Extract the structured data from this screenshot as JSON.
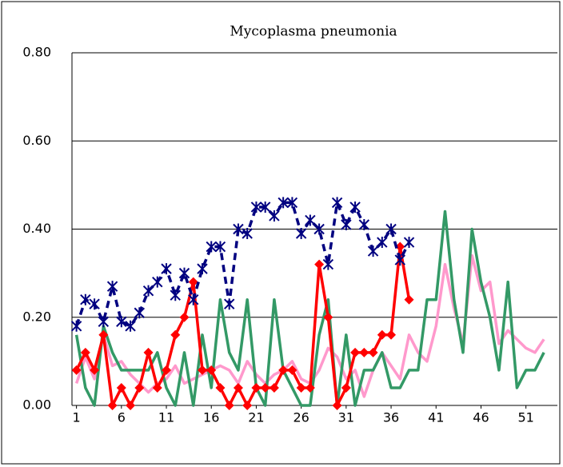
{
  "chart_data": {
    "type": "line",
    "title": "Mycoplasma pneumonia",
    "x": [
      1,
      2,
      3,
      4,
      5,
      6,
      7,
      8,
      9,
      10,
      11,
      12,
      13,
      14,
      15,
      16,
      17,
      18,
      19,
      20,
      21,
      22,
      23,
      24,
      25,
      26,
      27,
      28,
      29,
      30,
      31,
      32,
      33,
      34,
      35,
      36,
      37,
      38,
      39,
      40,
      41,
      42,
      43,
      44,
      45,
      46,
      47,
      48,
      49,
      50,
      51,
      52,
      53
    ],
    "xlim": [
      0.5,
      54.5
    ],
    "xticks": [
      1,
      6,
      11,
      16,
      21,
      26,
      31,
      36,
      41,
      46,
      51
    ],
    "ylim": [
      0,
      0.8
    ],
    "yticks": [
      {
        "value": 0,
        "label": "0.00"
      },
      {
        "value": 0.2,
        "label": "0.20"
      },
      {
        "value": 0.4,
        "label": "0.40"
      },
      {
        "value": 0.6,
        "label": "0.60"
      },
      {
        "value": 0.8,
        "label": "0.80"
      }
    ],
    "grid": true,
    "series": [
      {
        "color": "#ff99cc",
        "style": "solid",
        "marker": "none",
        "values": [
          0.05,
          0.11,
          0.06,
          0.16,
          0.09,
          0.1,
          0.07,
          0.05,
          0.03,
          0.05,
          0.06,
          0.09,
          0.05,
          0.06,
          0.07,
          0.08,
          0.09,
          0.08,
          0.05,
          0.1,
          0.07,
          0.05,
          0.07,
          0.08,
          0.1,
          0.06,
          0.05,
          0.08,
          0.13,
          0.11,
          0.06,
          0.08,
          0.02,
          0.08,
          0.12,
          0.09,
          0.06,
          0.16,
          0.12,
          0.1,
          0.18,
          0.32,
          0.22,
          0.14,
          0.34,
          0.26,
          0.28,
          0.14,
          0.17,
          0.15,
          0.13,
          0.12,
          0.15
        ]
      },
      {
        "color": "#339966",
        "style": "solid",
        "marker": "none",
        "values": [
          0.16,
          0.04,
          0.0,
          0.18,
          0.12,
          0.08,
          0.08,
          0.08,
          0.08,
          0.12,
          0.04,
          0.0,
          0.12,
          0.0,
          0.16,
          0.04,
          0.24,
          0.12,
          0.08,
          0.24,
          0.04,
          0.0,
          0.24,
          0.08,
          0.04,
          0.0,
          0.0,
          0.16,
          0.24,
          0.0,
          0.16,
          0.0,
          0.08,
          0.08,
          0.12,
          0.04,
          0.04,
          0.08,
          0.08,
          0.24,
          0.24,
          0.44,
          0.24,
          0.12,
          0.4,
          0.28,
          0.2,
          0.08,
          0.28,
          0.04,
          0.08,
          0.08,
          0.12
        ]
      },
      {
        "color": "#ff0000",
        "style": "solid",
        "marker": "diamond",
        "values": [
          0.08,
          0.12,
          0.08,
          0.16,
          0.0,
          0.04,
          0.0,
          0.04,
          0.12,
          0.04,
          0.08,
          0.16,
          0.2,
          0.28,
          0.08,
          0.08,
          0.04,
          0.0,
          0.04,
          0.0,
          0.04,
          0.04,
          0.04,
          0.08,
          0.08,
          0.04,
          0.04,
          0.32,
          0.2,
          0.0,
          0.04,
          0.12,
          0.12,
          0.12,
          0.16,
          0.16,
          0.36,
          0.24,
          null,
          null,
          null,
          null,
          null,
          null,
          null,
          null,
          null,
          null,
          null,
          null,
          null,
          null,
          null
        ]
      },
      {
        "color": "#000080",
        "style": "dashed",
        "marker": "asterisk",
        "values": [
          0.18,
          0.24,
          0.23,
          0.19,
          0.27,
          0.19,
          0.18,
          0.21,
          0.26,
          0.28,
          0.31,
          0.25,
          0.3,
          0.24,
          0.31,
          0.36,
          0.36,
          0.23,
          0.4,
          0.39,
          0.45,
          0.45,
          0.43,
          0.46,
          0.46,
          0.39,
          0.42,
          0.4,
          0.32,
          0.46,
          0.41,
          0.45,
          0.41,
          0.35,
          0.37,
          0.4,
          0.33,
          0.37,
          null,
          null,
          null,
          null,
          null,
          null,
          null,
          null,
          null,
          null,
          null,
          null,
          null,
          null,
          null
        ]
      }
    ]
  }
}
